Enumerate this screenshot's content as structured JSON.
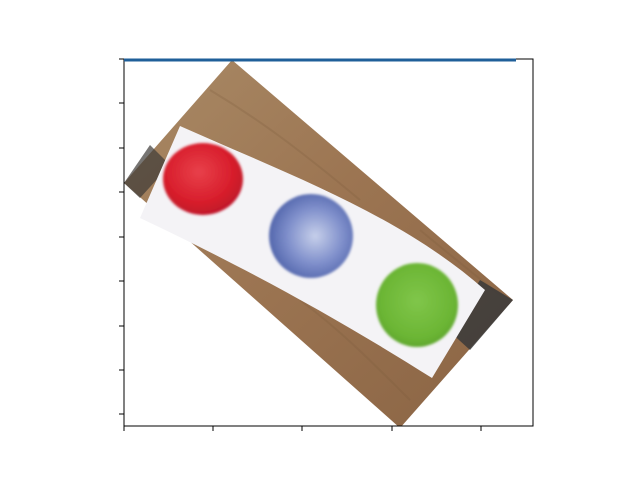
{
  "figure": {
    "subject": "rotated-photo",
    "colors": {
      "background": "#ffffff",
      "axes_frame": "#000000",
      "top_line": "#1f5f99",
      "wood": "#a07a55",
      "wood_dark": "#7a5a3c",
      "paper": "#f4f3f6",
      "dark_strip": "#3a3a3a",
      "red_dot": "#d81e2c",
      "blue_dot": "#5a6fb2",
      "green_dot": "#6bb534"
    },
    "axes": {
      "x_tick_count": 5,
      "y_tick_count": 9,
      "tick_labels_visible": false
    },
    "dots": [
      "red-dot",
      "blue-dot",
      "green-dot"
    ]
  }
}
